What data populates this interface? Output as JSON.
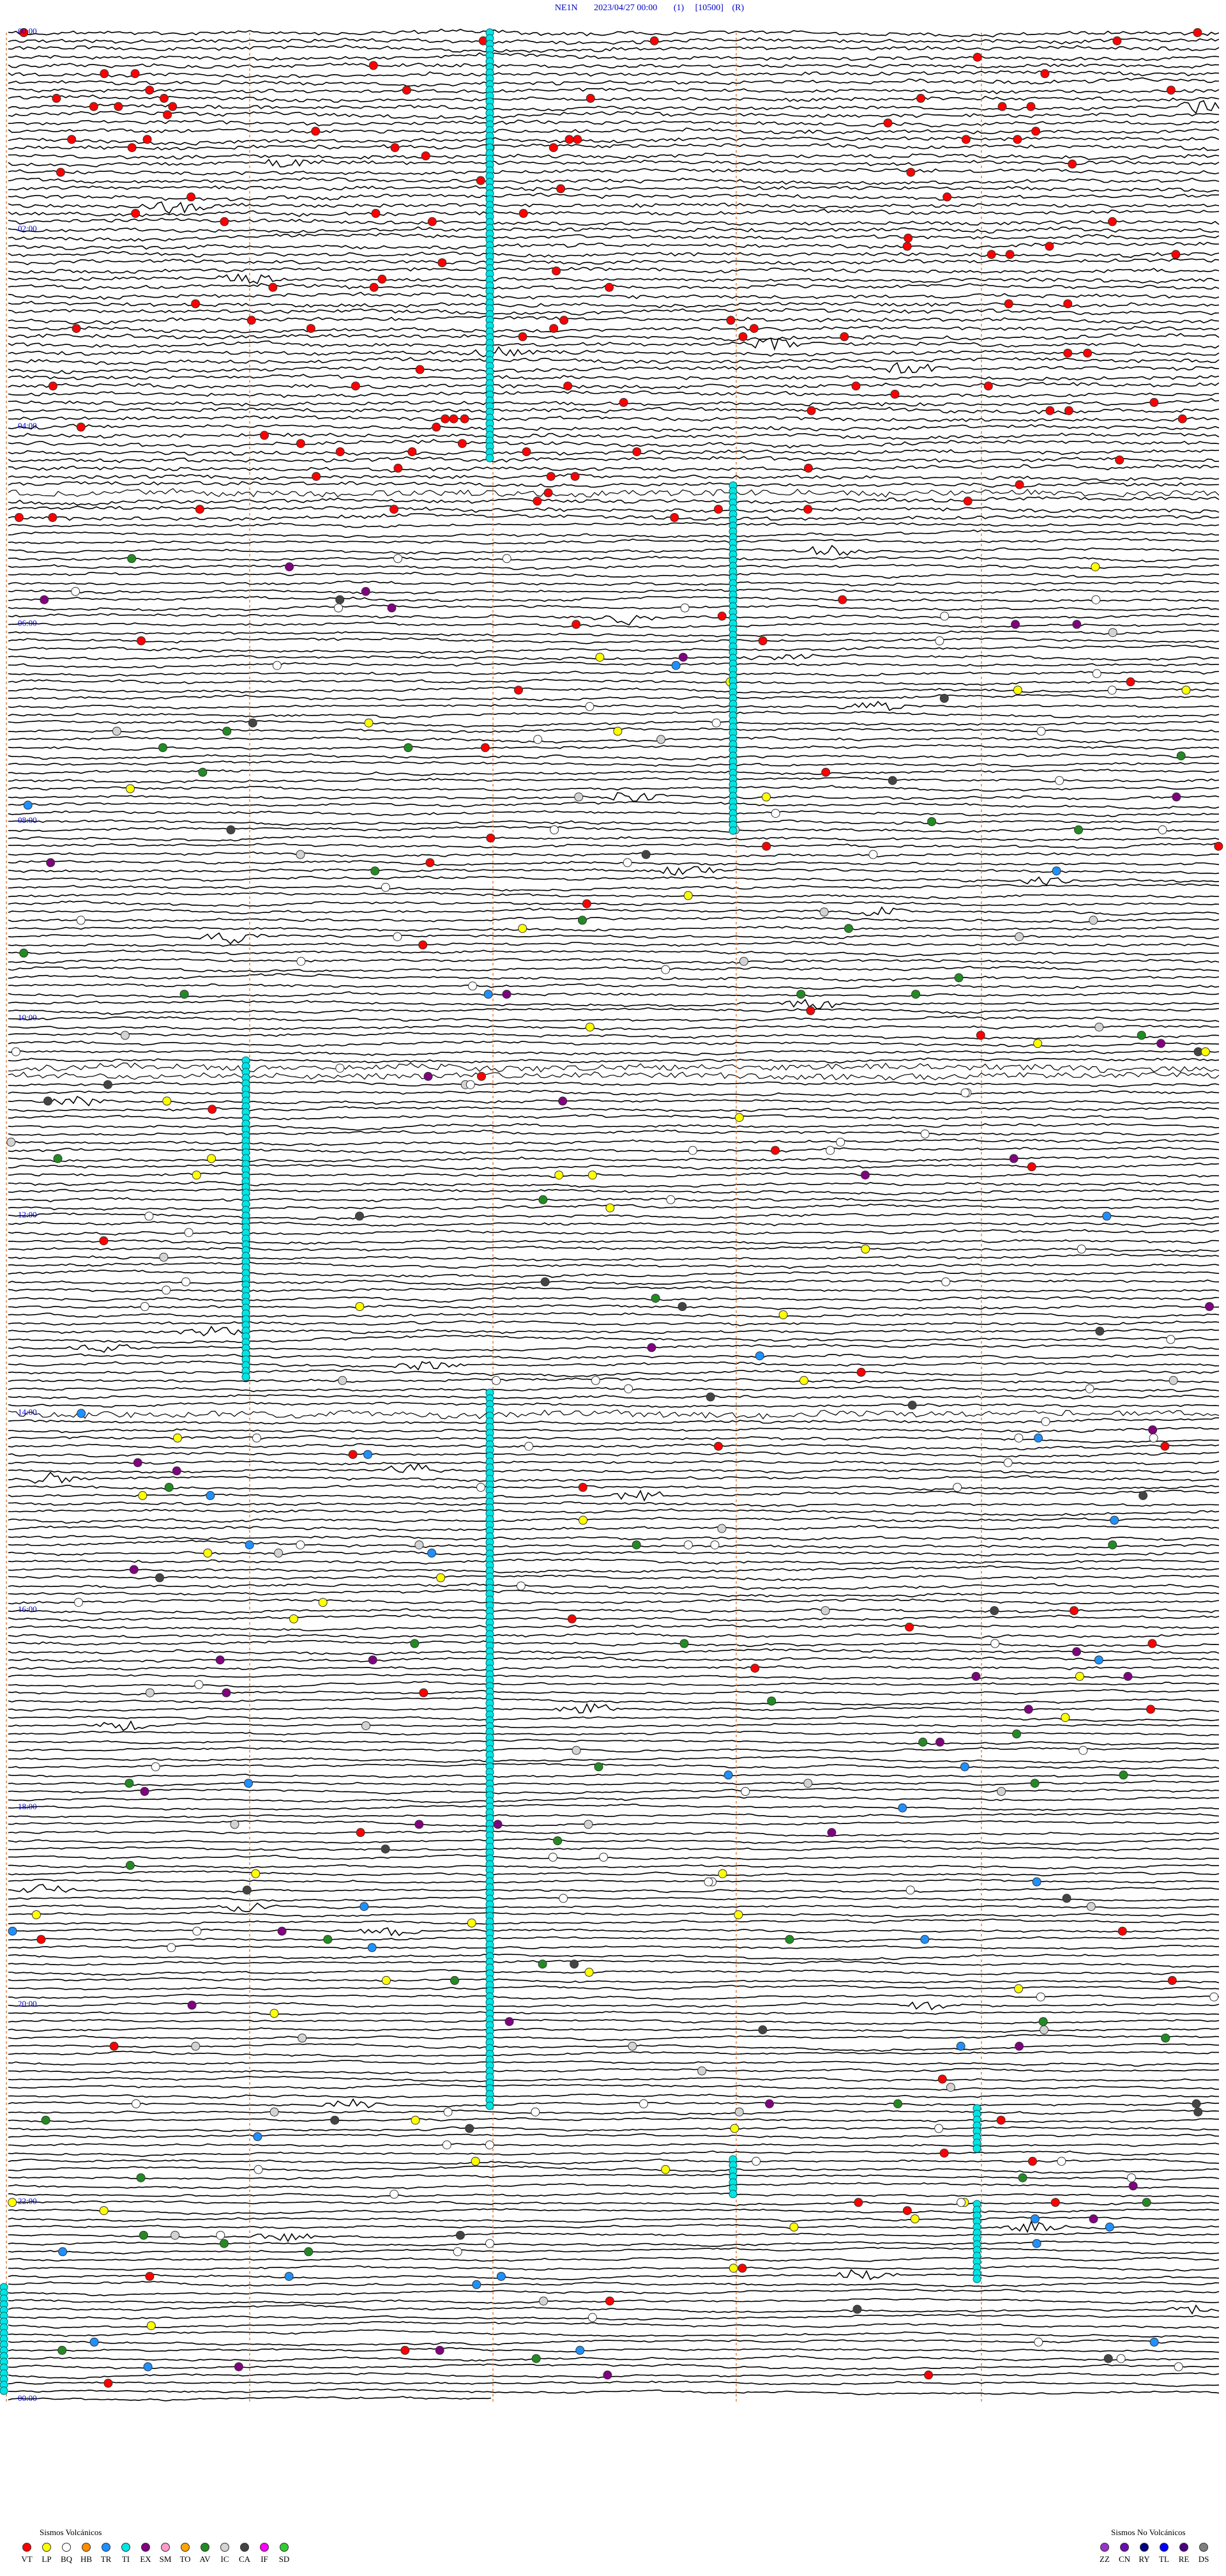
{
  "header": {
    "station": "NE1N",
    "datetime": "2023/04/27 00:00",
    "channel": "(1)",
    "gain": "[10500]",
    "mode": "(R)"
  },
  "time_labels": [
    "00:00",
    "02:00",
    "04:00",
    "06:00",
    "08:00",
    "10:00",
    "12:00",
    "14:00",
    "16:00",
    "18:00",
    "20:00",
    "22:00",
    "00:00"
  ],
  "legend": {
    "volcanic": {
      "title": "Sismos Volcánicos",
      "codes": [
        {
          "code": "VT",
          "color": "#ff0000"
        },
        {
          "code": "LP",
          "color": "#ffff00"
        },
        {
          "code": "BQ",
          "color": "#ffffff"
        },
        {
          "code": "HB",
          "color": "#ff8c00"
        },
        {
          "code": "TR",
          "color": "#1e90ff"
        },
        {
          "code": "TI",
          "color": "#00e5e5"
        },
        {
          "code": "EX",
          "color": "#800080"
        },
        {
          "code": "SM",
          "color": "#ff99cc"
        },
        {
          "code": "TO",
          "color": "#ffa500"
        },
        {
          "code": "AV",
          "color": "#228b22"
        },
        {
          "code": "IC",
          "color": "#d3d3d3"
        },
        {
          "code": "CA",
          "color": "#444444"
        },
        {
          "code": "IF",
          "color": "#ff00ff"
        },
        {
          "code": "SD",
          "color": "#32cd32"
        }
      ]
    },
    "non_volcanic": {
      "title": "Sismos No Volcánicos",
      "codes": [
        {
          "code": "ZZ",
          "color": "#9932cc"
        },
        {
          "code": "CN",
          "color": "#6a0dad"
        },
        {
          "code": "RY",
          "color": "#000080"
        },
        {
          "code": "TL",
          "color": "#0000ff"
        },
        {
          "code": "RE",
          "color": "#4b0082"
        },
        {
          "code": "DS",
          "color": "#808080"
        }
      ]
    }
  }
}
